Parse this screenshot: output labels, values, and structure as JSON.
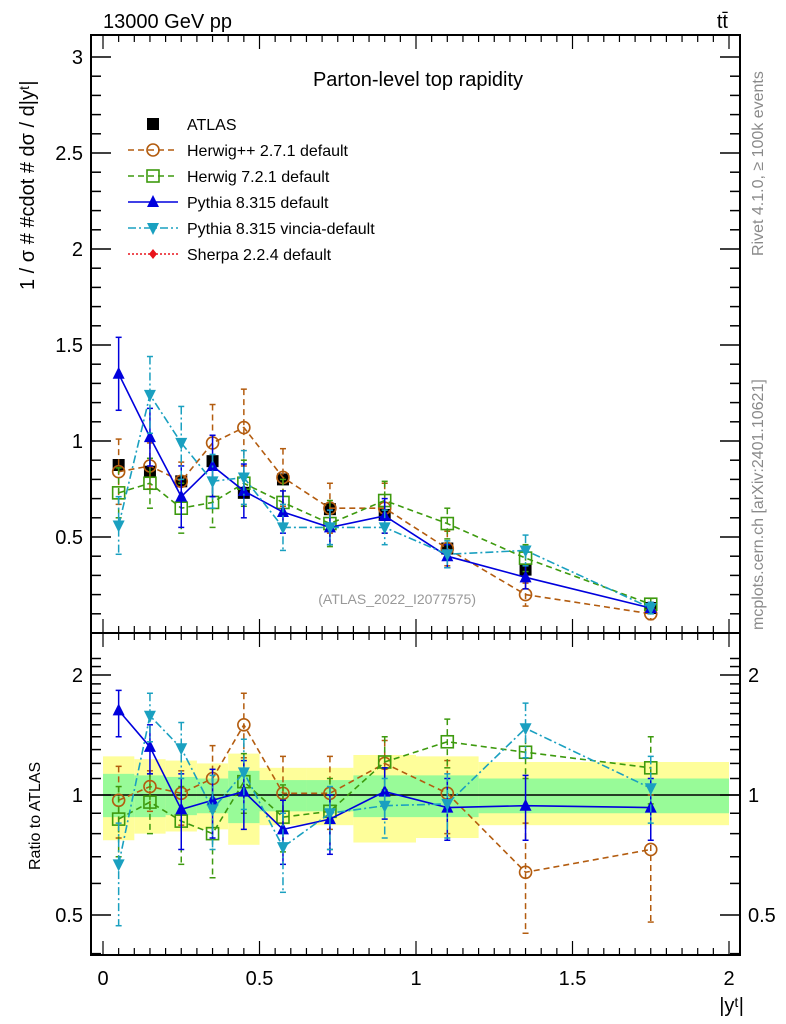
{
  "header": {
    "energy_label": "13000 GeV pp",
    "process_label": "tt̄"
  },
  "side_labels": {
    "rivet": "Rivet 4.1.0, ≥ 100k events",
    "mcplots": "mcplots.cern.ch [arXiv:2401.10621]"
  },
  "chart_data": [
    {
      "type": "line",
      "panel": "main",
      "title": "Parton-level top rapidity",
      "analysis_tag": "(ATLAS_2022_I2077575)",
      "xlabel": "|yᵗ|",
      "ylabel": "1 / σ # #cdot # dσ / d|yᵗ|",
      "xlim": [
        0,
        2
      ],
      "ylim": [
        0,
        3
      ],
      "x_ticks": [
        "0",
        "0.5",
        "1",
        "1.5",
        "2"
      ],
      "y_ticks": [
        "0.5",
        "1",
        "1.5",
        "2",
        "2.5",
        "3"
      ],
      "bins": [
        [
          0,
          0.1
        ],
        [
          0.1,
          0.2
        ],
        [
          0.2,
          0.3
        ],
        [
          0.3,
          0.4
        ],
        [
          0.4,
          0.5
        ],
        [
          0.5,
          0.65
        ],
        [
          0.65,
          0.8
        ],
        [
          0.8,
          1.0
        ],
        [
          1.0,
          1.2
        ],
        [
          1.2,
          1.5
        ],
        [
          1.5,
          2.0
        ]
      ],
      "x": [
        0.05,
        0.15,
        0.25,
        0.35,
        0.45,
        0.575,
        0.725,
        0.9,
        1.1,
        1.35,
        1.75
      ],
      "legend_position": "top-left",
      "series": [
        {
          "name": "ATLAS",
          "color": "#000000",
          "marker": "square-filled",
          "line": "none",
          "values": [
            0.875,
            0.84,
            0.79,
            0.895,
            0.73,
            0.8,
            0.645,
            0.615,
            0.44,
            0.33,
            0.13
          ],
          "errors": [
            0.02,
            0.02,
            0.02,
            0.02,
            0.02,
            0.02,
            0.02,
            0.02,
            0.02,
            0.02,
            0.01
          ]
        },
        {
          "name": "Herwig++ 2.7.1 default",
          "color": "#b35c0f",
          "marker": "circle-open",
          "line": "dashed",
          "values": [
            0.84,
            0.87,
            0.79,
            0.99,
            1.07,
            0.81,
            0.65,
            0.65,
            0.44,
            0.2,
            0.1
          ],
          "errors": [
            0.17,
            0.12,
            0.1,
            0.2,
            0.2,
            0.15,
            0.13,
            0.13,
            0.09,
            0.06,
            0.03
          ]
        },
        {
          "name": "Herwig 7.2.1 default",
          "color": "#3d9a0e",
          "marker": "square-open",
          "line": "dashed",
          "values": [
            0.73,
            0.78,
            0.65,
            0.68,
            0.78,
            0.68,
            0.57,
            0.69,
            0.57,
            0.39,
            0.15
          ],
          "errors": [
            0.13,
            0.13,
            0.13,
            0.13,
            0.12,
            0.12,
            0.12,
            0.1,
            0.08,
            0.07,
            0.03
          ]
        },
        {
          "name": "Pythia 8.315 default",
          "color": "#0000dd",
          "marker": "triangle-up-filled",
          "line": "solid",
          "values": [
            1.35,
            1.02,
            0.71,
            0.87,
            0.74,
            0.63,
            0.55,
            0.61,
            0.4,
            0.29,
            0.13
          ],
          "errors": [
            0.19,
            0.15,
            0.16,
            0.16,
            0.14,
            0.11,
            0.09,
            0.09,
            0.06,
            0.06,
            0.03
          ]
        },
        {
          "name": "Pythia 8.315 vincia-default",
          "color": "#1aa0c0",
          "marker": "triangle-down-filled",
          "line": "dashdot",
          "values": [
            0.56,
            1.24,
            0.99,
            0.79,
            0.81,
            0.55,
            0.55,
            0.55,
            0.41,
            0.43,
            0.13
          ],
          "errors": [
            0.15,
            0.2,
            0.19,
            0.14,
            0.14,
            0.12,
            0.09,
            0.09,
            0.07,
            0.08,
            0.03
          ]
        },
        {
          "name": "Sherpa 2.2.4 default",
          "color": "#e8141b",
          "marker": "diamond-filled",
          "line": "dotted",
          "values": [],
          "errors": []
        }
      ]
    },
    {
      "type": "line",
      "panel": "ratio",
      "ylabel": "Ratio to ATLAS",
      "xlabel": "|yᵗ|",
      "yscale": "log",
      "xlim": [
        0,
        2
      ],
      "ylim": [
        0.4,
        2.3
      ],
      "y_ticks": [
        "0.5",
        "1",
        "2"
      ],
      "x_ticks": [
        "0",
        "0.5",
        "1",
        "1.5",
        "2"
      ],
      "bins": [
        [
          0,
          0.1
        ],
        [
          0.1,
          0.2
        ],
        [
          0.2,
          0.3
        ],
        [
          0.3,
          0.4
        ],
        [
          0.4,
          0.5
        ],
        [
          0.5,
          0.65
        ],
        [
          0.65,
          0.8
        ],
        [
          0.8,
          1.0
        ],
        [
          1.0,
          1.2
        ],
        [
          1.2,
          1.5
        ],
        [
          1.5,
          2.0
        ]
      ],
      "x": [
        0.05,
        0.15,
        0.25,
        0.35,
        0.45,
        0.575,
        0.725,
        0.9,
        1.1,
        1.35,
        1.75
      ],
      "bands": {
        "stat_color": "#98fb98",
        "total_color": "#fefe9a",
        "stat_up": [
          1.13,
          1.12,
          1.11,
          1.1,
          1.15,
          1.09,
          1.09,
          1.12,
          1.12,
          1.1,
          1.1
        ],
        "stat_dn": [
          0.88,
          0.88,
          0.89,
          0.9,
          0.85,
          0.91,
          0.91,
          0.88,
          0.88,
          0.9,
          0.9
        ],
        "tot_up": [
          1.25,
          1.23,
          1.22,
          1.2,
          1.27,
          1.17,
          1.17,
          1.26,
          1.25,
          1.21,
          1.21
        ],
        "tot_dn": [
          0.77,
          0.8,
          0.81,
          0.82,
          0.75,
          0.84,
          0.84,
          0.76,
          0.78,
          0.84,
          0.84
        ]
      },
      "series": [
        {
          "name": "Herwig++ 2.7.1 default",
          "color": "#b35c0f",
          "marker": "circle-open",
          "line": "dashed",
          "values": [
            0.97,
            1.05,
            1.01,
            1.1,
            1.5,
            1.01,
            1.01,
            1.2,
            1.01,
            0.64,
            0.73
          ],
          "err_up": [
            1.18,
            1.15,
            1.15,
            1.33,
            1.8,
            1.25,
            1.25,
            1.37,
            1.22,
            0.85,
            1.0
          ],
          "err_dn": [
            0.78,
            0.91,
            0.84,
            0.91,
            1.24,
            0.82,
            0.82,
            1.02,
            0.8,
            0.45,
            0.48
          ]
        },
        {
          "name": "Herwig 7.2.1 default",
          "color": "#3d9a0e",
          "marker": "square-open",
          "line": "dashed",
          "values": [
            0.87,
            0.96,
            0.86,
            0.8,
            1.08,
            0.88,
            0.91,
            1.21,
            1.36,
            1.28,
            1.17
          ],
          "err_up": [
            1.05,
            1.13,
            1.05,
            0.98,
            1.27,
            1.06,
            1.1,
            1.4,
            1.55,
            1.47,
            1.4
          ],
          "err_dn": [
            0.7,
            0.8,
            0.67,
            0.62,
            0.9,
            0.72,
            0.73,
            1.03,
            1.17,
            1.1,
            0.95
          ]
        },
        {
          "name": "Pythia 8.315 default",
          "color": "#0000dd",
          "marker": "triangle-up-filled",
          "line": "solid",
          "values": [
            1.63,
            1.32,
            0.92,
            0.97,
            1.02,
            0.82,
            0.87,
            1.02,
            0.93,
            0.94,
            0.93
          ],
          "err_up": [
            1.83,
            1.5,
            1.13,
            1.16,
            1.22,
            0.97,
            1.0,
            1.17,
            1.1,
            1.12,
            1.1
          ],
          "err_dn": [
            1.4,
            1.13,
            0.73,
            0.78,
            0.82,
            0.67,
            0.71,
            0.87,
            0.77,
            0.77,
            0.77
          ]
        },
        {
          "name": "Pythia 8.315 vincia-default",
          "color": "#1aa0c0",
          "marker": "triangle-down-filled",
          "line": "dashdot",
          "values": [
            0.67,
            1.58,
            1.31,
            0.92,
            1.14,
            0.74,
            0.9,
            0.94,
            0.95,
            1.47,
            1.04
          ],
          "err_up": [
            0.85,
            1.8,
            1.52,
            1.12,
            1.38,
            0.9,
            1.05,
            1.1,
            1.13,
            1.7,
            1.25
          ],
          "err_dn": [
            0.47,
            1.36,
            1.1,
            0.73,
            0.92,
            0.57,
            0.73,
            0.78,
            0.78,
            1.24,
            0.85
          ]
        }
      ]
    }
  ]
}
